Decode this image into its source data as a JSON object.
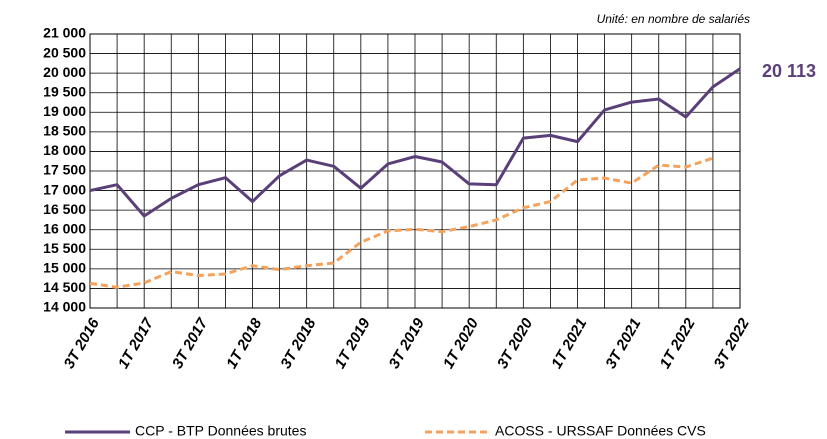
{
  "chart_data": {
    "type": "line",
    "note": "Unité: en nombre de salariés",
    "annotation": "20 113",
    "categories": [
      "3T 2016",
      null,
      "1T 2017",
      null,
      "3T 2017",
      null,
      "1T 2018",
      null,
      "3T 2018",
      null,
      "1T 2019",
      null,
      "3T 2019",
      null,
      "1T 2020",
      null,
      "3T 2020",
      null,
      "1T 2021",
      null,
      "3T 2021",
      null,
      "1T 2022",
      null,
      "3T 2022"
    ],
    "series": [
      {
        "name": "CCP - BTP Données brutes",
        "color": "#5b3f78",
        "dashed": false,
        "values": [
          17000,
          17150,
          16350,
          16800,
          17150,
          17330,
          16720,
          17380,
          17780,
          17620,
          17060,
          17680,
          17870,
          17730,
          17170,
          17150,
          18340,
          18410,
          18250,
          19060,
          19260,
          19340,
          18880,
          19650,
          20113
        ]
      },
      {
        "name": "ACOSS - URSSAF Données CVS",
        "color": "#f5a35c",
        "dashed": true,
        "values": [
          14630,
          14530,
          14640,
          14930,
          14830,
          14870,
          15080,
          14980,
          15080,
          15150,
          15680,
          15970,
          16010,
          15950,
          16080,
          16250,
          16560,
          16720,
          17270,
          17320,
          17190,
          17650,
          17600,
          17830,
          null
        ]
      }
    ],
    "ylim": [
      14000,
      21000
    ],
    "yticks": [
      {
        "value": 14000,
        "label": "14 000"
      },
      {
        "value": 14500,
        "label": "14 500"
      },
      {
        "value": 15000,
        "label": "15 000"
      },
      {
        "value": 15500,
        "label": "15 500"
      },
      {
        "value": 16000,
        "label": "16 000"
      },
      {
        "value": 16500,
        "label": "16 500"
      },
      {
        "value": 17000,
        "label": "17 000"
      },
      {
        "value": 17500,
        "label": "17 500"
      },
      {
        "value": 18000,
        "label": "18 000"
      },
      {
        "value": 18500,
        "label": "18 500"
      },
      {
        "value": 19000,
        "label": "19 000"
      },
      {
        "value": 19500,
        "label": "19 500"
      },
      {
        "value": 20000,
        "label": "20 000"
      },
      {
        "value": 20500,
        "label": "20 500"
      },
      {
        "value": 21000,
        "label": "21 000"
      }
    ],
    "grid": true
  }
}
